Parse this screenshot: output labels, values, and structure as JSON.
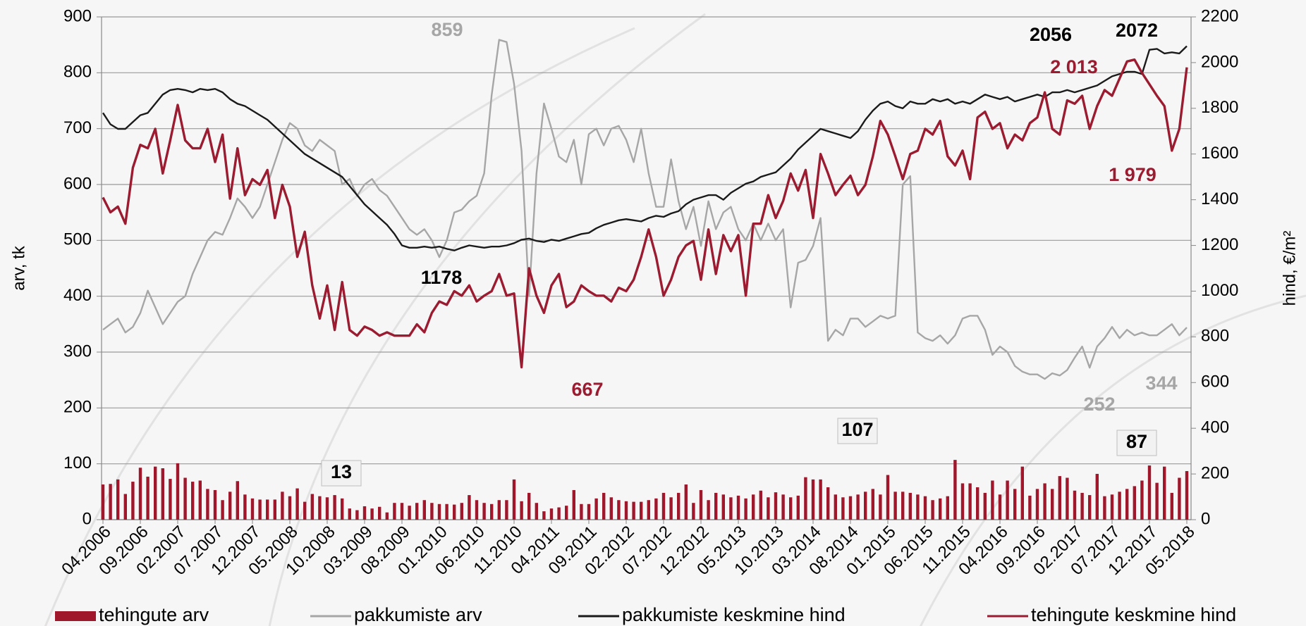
{
  "chart_data": {
    "type": "combo",
    "y_label": "arv, tk",
    "y2_label": "hind, €/m²",
    "categories": [
      "04.2006",
      null,
      null,
      null,
      null,
      "09.2006",
      null,
      null,
      null,
      null,
      "02.2007",
      null,
      null,
      null,
      null,
      "07.2007",
      null,
      null,
      null,
      null,
      "12.2007",
      null,
      null,
      null,
      null,
      "05.2008",
      null,
      null,
      null,
      null,
      "10.2008",
      null,
      null,
      null,
      null,
      "03.2009",
      null,
      null,
      null,
      null,
      "08.2009",
      null,
      null,
      null,
      null,
      "01.2010",
      null,
      null,
      null,
      null,
      "06.2010",
      null,
      null,
      null,
      null,
      "11.2010",
      null,
      null,
      null,
      null,
      "04.2011",
      null,
      null,
      null,
      null,
      "09.2011",
      null,
      null,
      null,
      null,
      "02.2012",
      null,
      null,
      null,
      null,
      "07.2012",
      null,
      null,
      null,
      null,
      "12.2012",
      null,
      null,
      null,
      null,
      "05.2013",
      null,
      null,
      null,
      null,
      "10.2013",
      null,
      null,
      null,
      null,
      "03.2014",
      null,
      null,
      null,
      null,
      "08.2014",
      null,
      null,
      null,
      null,
      "01.2015",
      null,
      null,
      null,
      null,
      "06.2015",
      null,
      null,
      null,
      null,
      "11.2015",
      null,
      null,
      null,
      null,
      "04.2016",
      null,
      null,
      null,
      null,
      "09.2016",
      null,
      null,
      null,
      null,
      "02.2017",
      null,
      null,
      null,
      null,
      "07.2017",
      null,
      null,
      null,
      null,
      "12.2017",
      null,
      null,
      null,
      null,
      "05.2018"
    ],
    "ylim": [
      0,
      900
    ],
    "yticks": [
      0,
      100,
      200,
      300,
      400,
      500,
      600,
      700,
      800,
      900
    ],
    "y2lim": [
      0,
      2200
    ],
    "y2ticks": [
      0,
      200,
      400,
      600,
      800,
      1000,
      1200,
      1400,
      1600,
      1800,
      2000,
      2200
    ],
    "grid": true,
    "legend": "bottom",
    "series": [
      {
        "name": "tehingute arv",
        "type": "bar",
        "color": "#a0162b",
        "values": [
          63,
          64,
          72,
          46,
          68,
          93,
          77,
          95,
          92,
          73,
          101,
          75,
          68,
          70,
          55,
          53,
          35,
          50,
          69,
          45,
          38,
          36,
          36,
          36,
          50,
          42,
          56,
          32,
          46,
          42,
          40,
          44,
          38,
          20,
          17,
          24,
          20,
          23,
          13,
          30,
          30,
          25,
          30,
          35,
          30,
          28,
          28,
          27,
          30,
          44,
          35,
          30,
          28,
          35,
          35,
          72,
          33,
          48,
          30,
          15,
          20,
          22,
          25,
          53,
          28,
          28,
          38,
          48,
          40,
          35,
          33,
          32,
          32,
          35,
          38,
          48,
          40,
          48,
          63,
          30,
          53,
          35,
          48,
          45,
          40,
          43,
          38,
          45,
          52,
          40,
          49,
          45,
          40,
          43,
          76,
          72,
          72,
          58,
          45,
          40,
          42,
          45,
          50,
          55,
          45,
          80,
          50,
          50,
          48,
          45,
          42,
          35,
          38,
          42,
          107,
          65,
          65,
          58,
          48,
          70,
          45,
          70,
          55,
          95,
          43,
          55,
          65,
          55,
          78,
          75,
          52,
          48,
          44,
          82,
          42,
          45,
          50,
          55,
          60,
          70,
          97,
          66,
          95,
          48,
          75,
          87
        ]
      },
      {
        "name": "pakkumiste arv",
        "type": "line",
        "color": "#a6a6a6",
        "values": [
          340,
          350,
          360,
          335,
          345,
          370,
          410,
          380,
          350,
          370,
          390,
          400,
          440,
          470,
          500,
          515,
          510,
          540,
          575,
          560,
          540,
          560,
          600,
          640,
          680,
          710,
          700,
          670,
          660,
          680,
          670,
          660,
          600,
          610,
          580,
          600,
          610,
          590,
          580,
          560,
          540,
          520,
          510,
          520,
          500,
          470,
          500,
          550,
          555,
          570,
          580,
          620,
          760,
          859,
          855,
          780,
          660,
          400,
          620,
          745,
          700,
          650,
          640,
          680,
          600,
          690,
          700,
          670,
          700,
          705,
          680,
          640,
          700,
          620,
          560,
          560,
          645,
          570,
          520,
          560,
          490,
          570,
          520,
          550,
          560,
          520,
          500,
          530,
          500,
          530,
          500,
          520,
          380,
          460,
          465,
          490,
          540,
          320,
          340,
          330,
          360,
          360,
          345,
          355,
          365,
          360,
          365,
          600,
          615,
          335,
          325,
          320,
          330,
          315,
          330,
          360,
          365,
          365,
          340,
          295,
          310,
          300,
          275,
          265,
          260,
          260,
          252,
          262,
          258,
          268,
          290,
          310,
          272,
          310,
          325,
          345,
          325,
          340,
          330,
          335,
          330,
          330,
          340,
          350,
          330,
          344
        ]
      },
      {
        "name": "pakkumiste keskmine hind",
        "type": "line",
        "axis": "y2",
        "color": "#1a1a1a",
        "values": [
          1780,
          1730,
          1710,
          1710,
          1740,
          1770,
          1780,
          1820,
          1860,
          1880,
          1885,
          1880,
          1870,
          1885,
          1880,
          1885,
          1870,
          1840,
          1820,
          1810,
          1790,
          1770,
          1750,
          1720,
          1690,
          1660,
          1630,
          1600,
          1580,
          1560,
          1540,
          1520,
          1500,
          1460,
          1420,
          1380,
          1350,
          1320,
          1290,
          1250,
          1200,
          1190,
          1190,
          1195,
          1190,
          1195,
          1185,
          1178,
          1190,
          1200,
          1195,
          1190,
          1195,
          1195,
          1200,
          1210,
          1225,
          1230,
          1220,
          1215,
          1225,
          1220,
          1230,
          1240,
          1250,
          1255,
          1275,
          1290,
          1300,
          1310,
          1315,
          1310,
          1305,
          1320,
          1330,
          1325,
          1340,
          1350,
          1380,
          1400,
          1410,
          1420,
          1420,
          1400,
          1430,
          1450,
          1470,
          1480,
          1500,
          1510,
          1520,
          1550,
          1580,
          1620,
          1650,
          1680,
          1710,
          1700,
          1690,
          1680,
          1670,
          1700,
          1750,
          1790,
          1820,
          1830,
          1810,
          1800,
          1830,
          1820,
          1820,
          1840,
          1830,
          1840,
          1820,
          1830,
          1820,
          1840,
          1860,
          1850,
          1840,
          1850,
          1830,
          1840,
          1850,
          1860,
          1850,
          1870,
          1870,
          1880,
          1870,
          1880,
          1890,
          1900,
          1920,
          1940,
          1950,
          1960,
          1960,
          1950,
          2056,
          2060,
          2040,
          2045,
          2040,
          2072
        ]
      },
      {
        "name": "tehingute keskmine hind",
        "type": "line",
        "axis": "y2",
        "color": "#9b1b30",
        "values": [
          1410,
          1345,
          1370,
          1295,
          1540,
          1640,
          1625,
          1710,
          1515,
          1660,
          1815,
          1660,
          1625,
          1625,
          1710,
          1565,
          1685,
          1405,
          1625,
          1420,
          1490,
          1465,
          1530,
          1320,
          1465,
          1370,
          1150,
          1260,
          1025,
          880,
          1025,
          830,
          1040,
          830,
          805,
          845,
          830,
          805,
          820,
          805,
          805,
          805,
          855,
          820,
          905,
          955,
          940,
          1000,
          980,
          1025,
          955,
          980,
          1000,
          1075,
          980,
          990,
          667,
          1100,
          980,
          905,
          1025,
          1075,
          930,
          955,
          1025,
          1000,
          980,
          980,
          955,
          1015,
          1000,
          1050,
          1150,
          1270,
          1150,
          980,
          1050,
          1150,
          1200,
          1220,
          1050,
          1270,
          1075,
          1245,
          1175,
          1245,
          980,
          1295,
          1295,
          1420,
          1320,
          1395,
          1515,
          1440,
          1530,
          1320,
          1600,
          1515,
          1420,
          1465,
          1505,
          1420,
          1465,
          1590,
          1745,
          1685,
          1590,
          1490,
          1600,
          1615,
          1710,
          1685,
          1745,
          1590,
          1550,
          1615,
          1490,
          1760,
          1785,
          1710,
          1735,
          1625,
          1685,
          1660,
          1735,
          1760,
          1870,
          1710,
          1685,
          1835,
          1820,
          1855,
          1710,
          1810,
          1880,
          1855,
          1930,
          2005,
          2013,
          1955,
          1905,
          1855,
          1810,
          1615,
          1710,
          1979
        ]
      }
    ],
    "annotations": [
      {
        "text": "859",
        "color": "#a6a6a6"
      },
      {
        "text": "1178",
        "color": "#000000"
      },
      {
        "text": "667",
        "color": "#9b1b30"
      },
      {
        "text": "2056",
        "color": "#000000"
      },
      {
        "text": "2072",
        "color": "#000000"
      },
      {
        "text": "2 013",
        "color": "#9b1b30"
      },
      {
        "text": "1 979",
        "color": "#9b1b30"
      },
      {
        "text": "252",
        "color": "#a6a6a6"
      },
      {
        "text": "344",
        "color": "#a6a6a6"
      },
      {
        "text": "13",
        "color": "#000000",
        "boxed": true
      },
      {
        "text": "107",
        "color": "#000000",
        "boxed": true
      },
      {
        "text": "87",
        "color": "#000000",
        "boxed": true
      }
    ]
  }
}
